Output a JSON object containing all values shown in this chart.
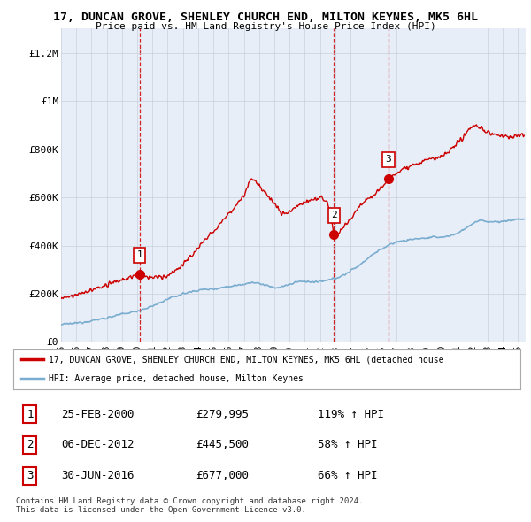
{
  "title": "17, DUNCAN GROVE, SHENLEY CHURCH END, MILTON KEYNES, MK5 6HL",
  "subtitle": "Price paid vs. HM Land Registry's House Price Index (HPI)",
  "xlim_start": 1995.0,
  "xlim_end": 2025.5,
  "ylim": [
    0,
    1300000
  ],
  "yticks": [
    0,
    200000,
    400000,
    600000,
    800000,
    1000000,
    1200000
  ],
  "ytick_labels": [
    "£0",
    "£200K",
    "£400K",
    "£600K",
    "£800K",
    "£1M",
    "£1.2M"
  ],
  "xtick_years": [
    1995,
    1996,
    1997,
    1998,
    1999,
    2000,
    2001,
    2002,
    2003,
    2004,
    2005,
    2006,
    2007,
    2008,
    2009,
    2010,
    2011,
    2012,
    2013,
    2014,
    2015,
    2016,
    2017,
    2018,
    2019,
    2020,
    2021,
    2022,
    2023,
    2024,
    2025
  ],
  "xtick_labels": [
    "95",
    "96",
    "97",
    "98",
    "99",
    "00",
    "01",
    "02",
    "03",
    "04",
    "05",
    "06",
    "07",
    "08",
    "09",
    "10",
    "11",
    "12",
    "13",
    "14",
    "15",
    "16",
    "17",
    "18",
    "19",
    "20",
    "21",
    "22",
    "23",
    "24",
    "25"
  ],
  "sale_dates": [
    2000.15,
    2012.92,
    2016.5
  ],
  "sale_prices": [
    279995,
    445500,
    677000
  ],
  "sale_labels": [
    "1",
    "2",
    "3"
  ],
  "sale_line_color": "#cc0000",
  "hpi_line_color": "#7aadcf",
  "vline_color": "#cc0000",
  "label_box_color": "#cc0000",
  "legend_entries": [
    "17, DUNCAN GROVE, SHENLEY CHURCH END, MILTON KEYNES, MK5 6HL (detached house",
    "HPI: Average price, detached house, Milton Keynes"
  ],
  "table_rows": [
    [
      "1",
      "25-FEB-2000",
      "£279,995",
      "119% ↑ HPI"
    ],
    [
      "2",
      "06-DEC-2012",
      "£445,500",
      "58% ↑ HPI"
    ],
    [
      "3",
      "30-JUN-2016",
      "£677,000",
      "66% ↑ HPI"
    ]
  ],
  "footer": "Contains HM Land Registry data © Crown copyright and database right 2024.\nThis data is licensed under the Open Government Licence v3.0.",
  "background_color": "#ffffff",
  "plot_bg_color": "#e8eef8"
}
